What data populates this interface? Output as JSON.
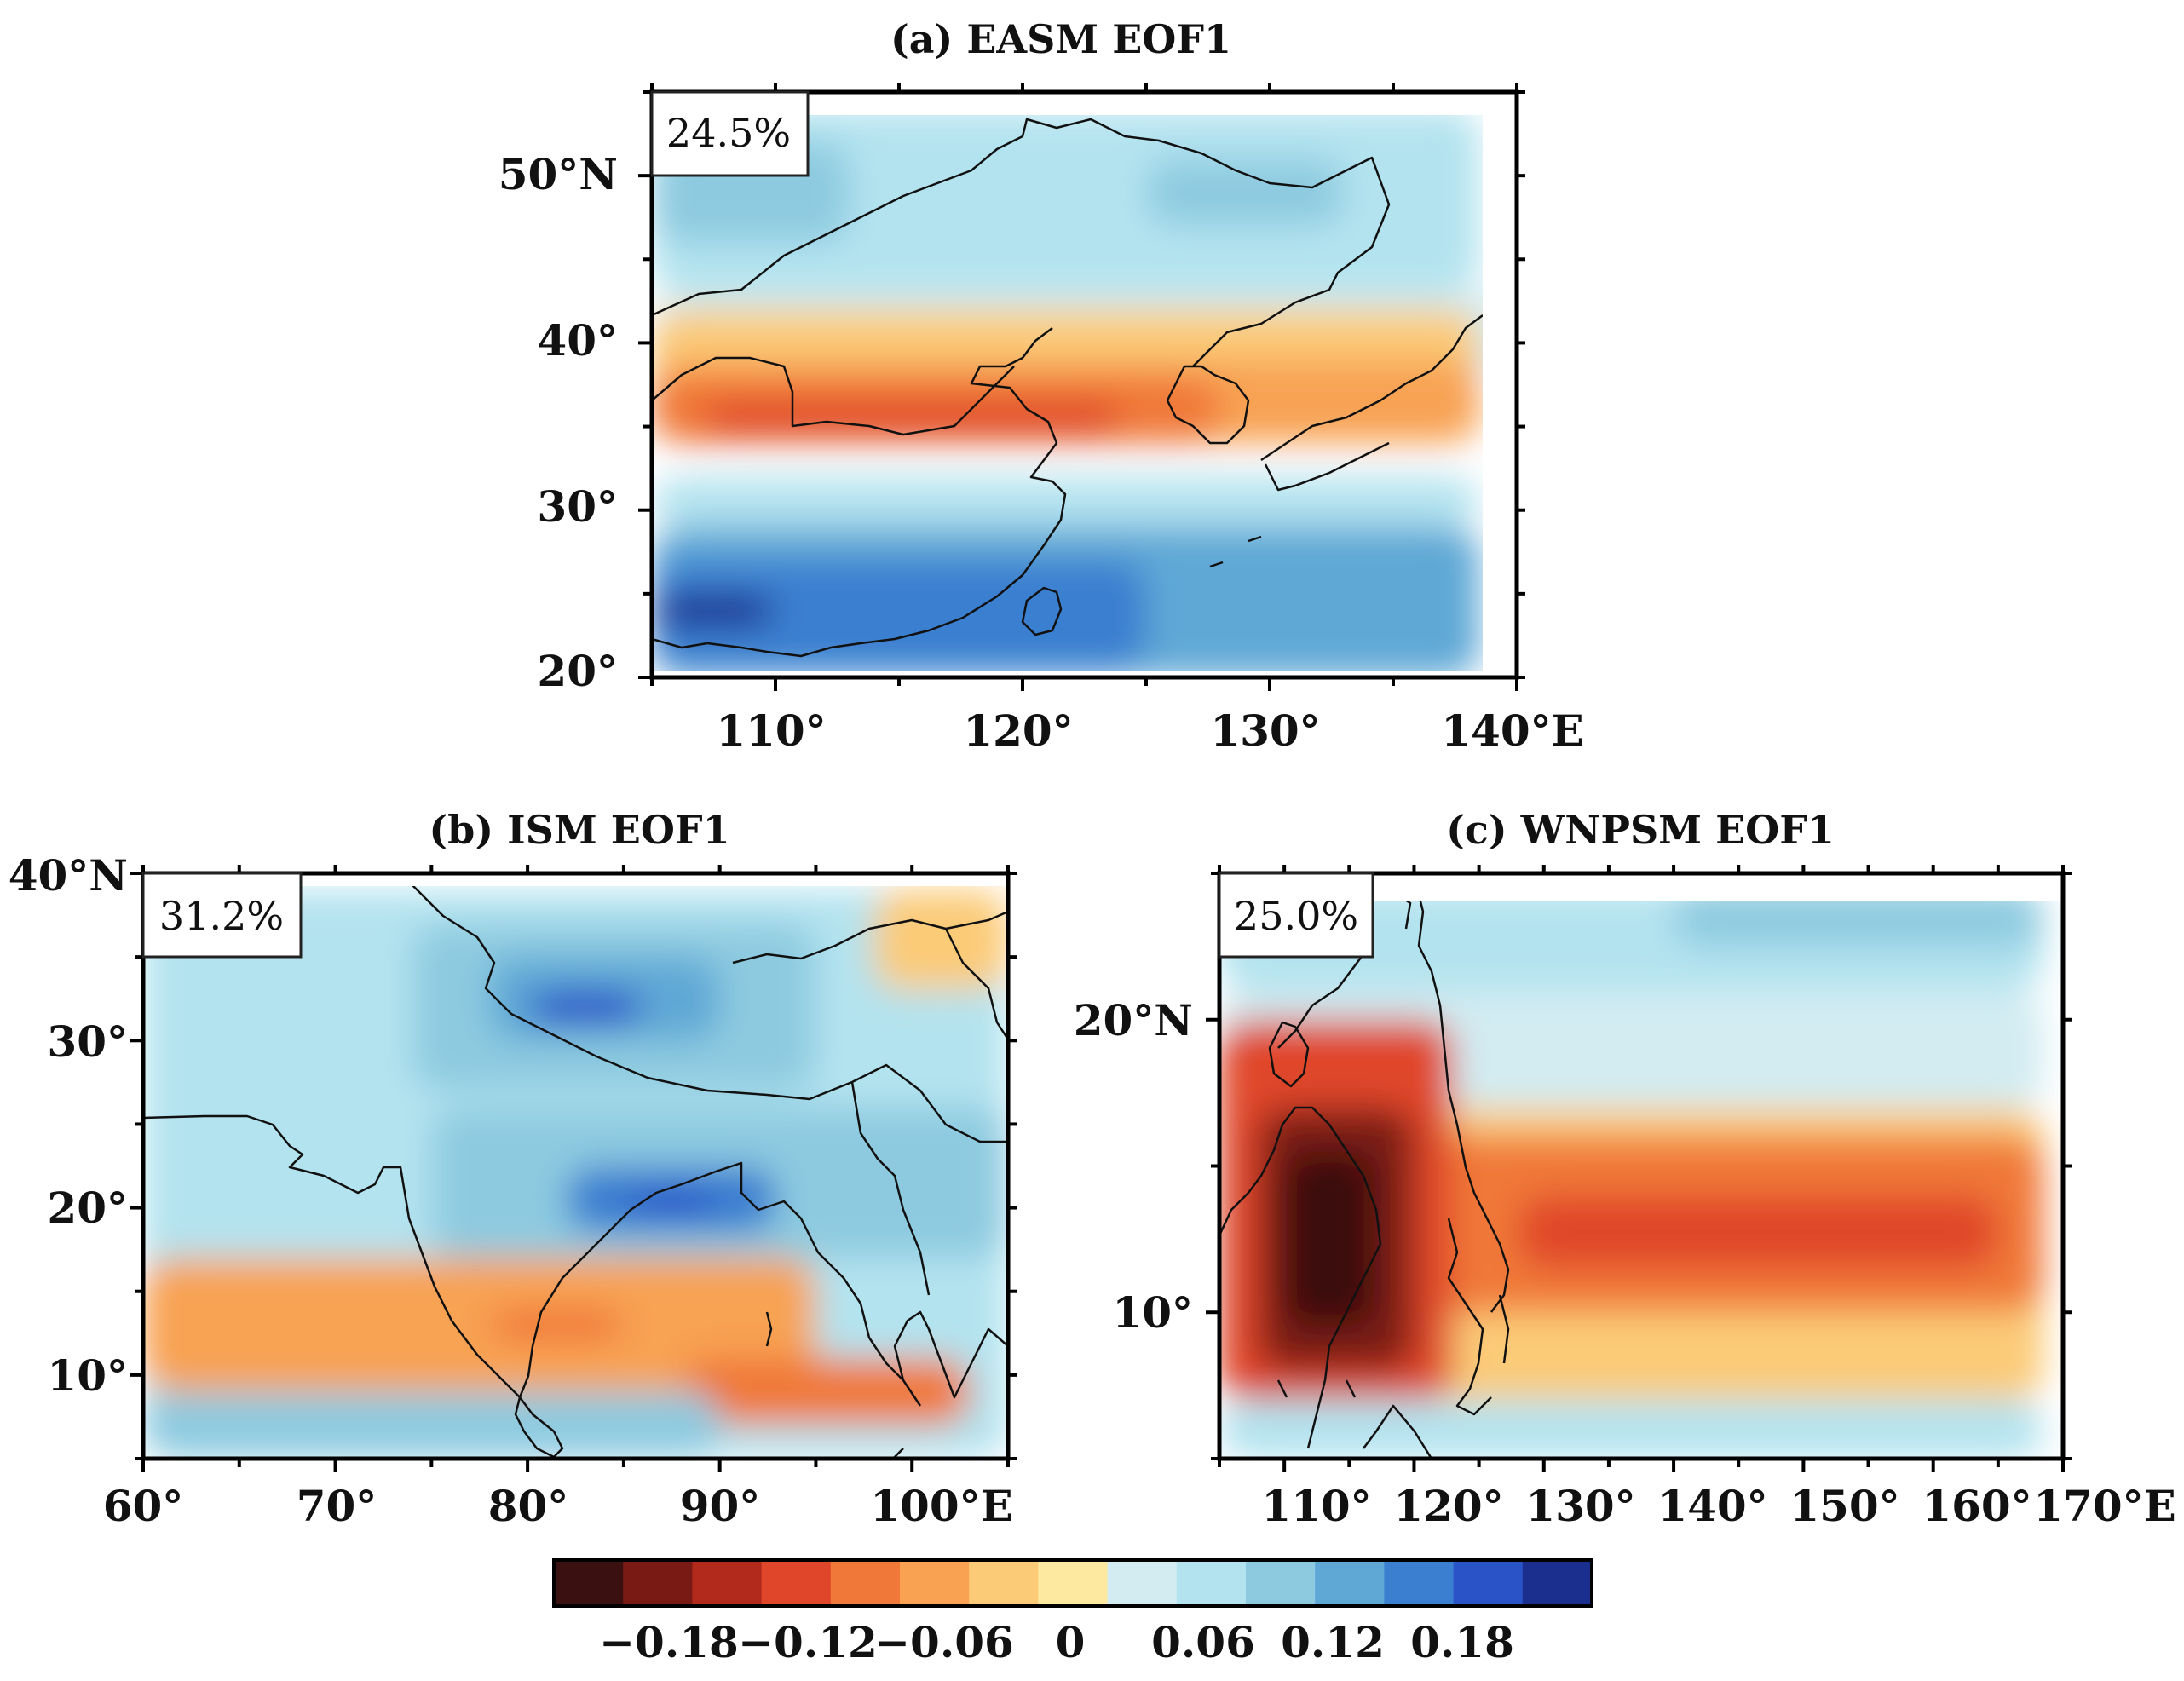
{
  "colors": {
    "contour_palette": [
      "#3a1010",
      "#7a1a14",
      "#b22a1c",
      "#e0472a",
      "#f07838",
      "#f8a252",
      "#fbcb78",
      "#fdeaa0",
      "#d2ecf2",
      "#b3e3ef",
      "#8dcae0",
      "#5fa8d6",
      "#3b7fd0",
      "#2a53c8",
      "#1b2f8f"
    ],
    "background": "#ffffff",
    "coastline": "#111111"
  },
  "colorbar": {
    "tick_labels": [
      "-0.18",
      "-0.12",
      "-0.06",
      "0",
      "0.06",
      "0.12",
      "0.18"
    ],
    "tick_positions": [
      -0.18,
      -0.12,
      -0.06,
      0,
      0.06,
      0.12,
      0.18
    ],
    "range": [
      -0.24,
      0.24
    ]
  },
  "chart_data": [
    {
      "type": "heatmap",
      "id": "a",
      "title": "(a) EASM EOF1",
      "variance_label": "24.5%",
      "x_ticks": [
        "110°",
        "120°",
        "130°",
        "140°E"
      ],
      "y_ticks": [
        "50°N",
        "40°",
        "30°",
        "20°"
      ],
      "lon_range": [
        105,
        140
      ],
      "lat_range": [
        20,
        55
      ],
      "pattern": [
        {
          "lat": [
            38,
            43
          ],
          "lon": [
            105,
            140
          ],
          "value": 0.03
        },
        {
          "lat": [
            43,
            54
          ],
          "lon": [
            105,
            138.5
          ],
          "value": 0.07
        },
        {
          "lat": [
            46,
            52
          ],
          "lon": [
            105,
            113
          ],
          "value": 0.11
        },
        {
          "lat": [
            47,
            51
          ],
          "lon": [
            125,
            133
          ],
          "value": 0.1
        },
        {
          "lat": [
            37,
            42
          ],
          "lon": [
            105,
            138.5
          ],
          "value": -0.03
        },
        {
          "lat": [
            34,
            39
          ],
          "lon": [
            105,
            138.5
          ],
          "value": -0.07
        },
        {
          "lat": [
            34,
            38
          ],
          "lon": [
            105,
            128
          ],
          "value": -0.1
        },
        {
          "lat": [
            34.5,
            36.5
          ],
          "lon": [
            107,
            124
          ],
          "value": -0.14
        },
        {
          "lat": [
            29,
            32
          ],
          "lon": [
            105,
            138.5
          ],
          "value": 0.05
        },
        {
          "lat": [
            20,
            29
          ],
          "lon": [
            105,
            138.5
          ],
          "value": 0.12
        },
        {
          "lat": [
            20.5,
            27
          ],
          "lon": [
            105,
            125
          ],
          "value": 0.16
        },
        {
          "lat": [
            23,
            25
          ],
          "lon": [
            105,
            110
          ],
          "value": 0.21
        }
      ]
    },
    {
      "type": "heatmap",
      "id": "b",
      "title": "(b) ISM EOF1",
      "variance_label": "31.2%",
      "x_ticks": [
        "60°",
        "70°",
        "80°",
        "90°",
        "100°E"
      ],
      "y_ticks": [
        "40°N",
        "30°",
        "20°",
        "10°"
      ],
      "lon_range": [
        60,
        105
      ],
      "lat_range": [
        5,
        40
      ],
      "pattern": [
        {
          "lat": [
            5,
            39
          ],
          "lon": [
            60,
            105
          ],
          "value": 0.05
        },
        {
          "lat": [
            27,
            37
          ],
          "lon": [
            74,
            95
          ],
          "value": 0.1
        },
        {
          "lat": [
            30,
            35
          ],
          "lon": [
            78,
            90
          ],
          "value": 0.14
        },
        {
          "lat": [
            31,
            33
          ],
          "lon": [
            80,
            86
          ],
          "value": 0.18
        },
        {
          "lat": [
            17,
            26
          ],
          "lon": [
            75,
            105
          ],
          "value": 0.1
        },
        {
          "lat": [
            18.5,
            22.5
          ],
          "lon": [
            82,
            93
          ],
          "value": 0.15
        },
        {
          "lat": [
            19.5,
            21
          ],
          "lon": [
            85,
            90
          ],
          "value": 0.2
        },
        {
          "lat": [
            9,
            17
          ],
          "lon": [
            60,
            95
          ],
          "value": -0.06
        },
        {
          "lat": [
            12,
            14
          ],
          "lon": [
            78,
            85
          ],
          "value": -0.1
        },
        {
          "lat": [
            7,
            11
          ],
          "lon": [
            88,
            103
          ],
          "value": -0.09
        },
        {
          "lat": [
            5,
            9
          ],
          "lon": [
            60,
            90
          ],
          "value": 0.08
        },
        {
          "lat": [
            33,
            39
          ],
          "lon": [
            98,
            105
          ],
          "value": -0.04
        }
      ]
    },
    {
      "type": "heatmap",
      "id": "c",
      "title": "(c) WNPSM EOF1",
      "variance_label": "25.0%",
      "x_ticks": [
        "110°",
        "120°",
        "130°",
        "140°",
        "150°",
        "160°",
        "170°E"
      ],
      "y_ticks": [
        "20°N",
        "10°"
      ],
      "lon_range": [
        105,
        170
      ],
      "lat_range": [
        5,
        25
      ],
      "pattern": [
        {
          "lat": [
            21,
            24.5
          ],
          "lon": [
            105,
            168.5
          ],
          "value": 0.06
        },
        {
          "lat": [
            22.5,
            24.5
          ],
          "lon": [
            140,
            168.5
          ],
          "value": 0.11
        },
        {
          "lat": [
            17,
            21
          ],
          "lon": [
            105,
            168.5
          ],
          "value": 0.02
        },
        {
          "lat": [
            7,
            17
          ],
          "lon": [
            105,
            168.5
          ],
          "value": -0.03
        },
        {
          "lat": [
            10,
            16
          ],
          "lon": [
            120,
            168.5
          ],
          "value": -0.08
        },
        {
          "lat": [
            11.5,
            14
          ],
          "lon": [
            128,
            165
          ],
          "value": -0.12
        },
        {
          "lat": [
            7,
            20
          ],
          "lon": [
            105,
            123
          ],
          "value": -0.13
        },
        {
          "lat": [
            8,
            17
          ],
          "lon": [
            108,
            120
          ],
          "value": -0.18
        },
        {
          "lat": [
            9.5,
            15.5
          ],
          "lon": [
            110,
            117
          ],
          "value": -0.22
        },
        {
          "lat": [
            5,
            7
          ],
          "lon": [
            105,
            168.5
          ],
          "value": 0.05
        }
      ]
    }
  ]
}
